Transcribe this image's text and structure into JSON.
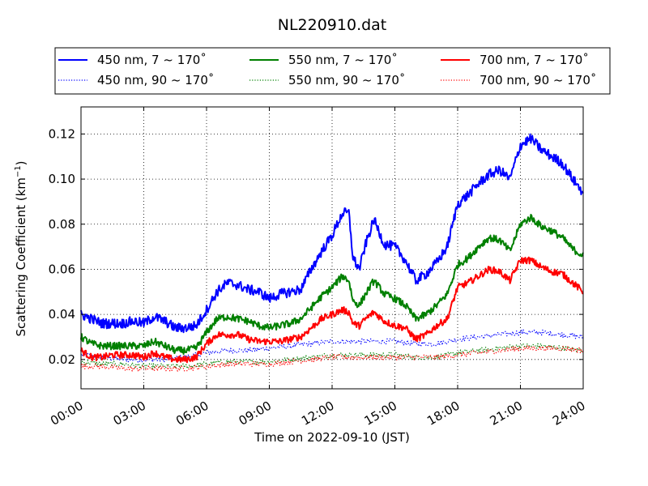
{
  "chart_data": {
    "type": "line",
    "title": "NL220910.dat",
    "xlabel": "Time on 2022-09-10 (JST)",
    "ylabel": "Scattering Coefficient (km",
    "ylabel_sup": "−1",
    "ylabel_close": ")",
    "xlim": [
      0,
      24
    ],
    "ylim": [
      0.007,
      0.132
    ],
    "x_unit": "hours",
    "grid": true,
    "legend_position": "top",
    "x_ticks": [
      0,
      3,
      6,
      9,
      12,
      15,
      18,
      21,
      24
    ],
    "x_tick_labels": [
      "00:00",
      "03:00",
      "06:00",
      "09:00",
      "12:00",
      "15:00",
      "18:00",
      "21:00",
      "24:00"
    ],
    "y_ticks": [
      0.02,
      0.04,
      0.06,
      0.08,
      0.1,
      0.12
    ],
    "y_tick_labels": [
      "0.02",
      "0.04",
      "0.06",
      "0.08",
      "0.10",
      "0.12"
    ],
    "series": [
      {
        "name": "450 nm, 7 ~ 170˚",
        "color": "#0000ff",
        "style": "solid",
        "noise": 0.0022,
        "x": [
          0,
          0.5,
          1,
          1.5,
          2,
          2.5,
          3,
          3.5,
          4,
          4.5,
          5,
          5.5,
          6,
          6.5,
          7,
          7.5,
          8,
          8.5,
          9,
          9.5,
          10,
          10.5,
          11,
          11.5,
          12,
          12.5,
          12.8,
          13,
          13.3,
          13.6,
          14,
          14.5,
          15,
          15.5,
          16,
          16.5,
          17,
          17.5,
          18,
          18.5,
          19,
          19.5,
          20,
          20.5,
          21,
          21.5,
          22,
          22.5,
          23,
          23.5,
          24
        ],
        "y": [
          0.04,
          0.038,
          0.036,
          0.036,
          0.036,
          0.037,
          0.036,
          0.039,
          0.037,
          0.034,
          0.034,
          0.035,
          0.042,
          0.05,
          0.054,
          0.053,
          0.051,
          0.05,
          0.047,
          0.049,
          0.05,
          0.051,
          0.06,
          0.068,
          0.075,
          0.085,
          0.085,
          0.065,
          0.06,
          0.071,
          0.082,
          0.071,
          0.07,
          0.064,
          0.055,
          0.058,
          0.063,
          0.07,
          0.089,
          0.093,
          0.098,
          0.102,
          0.104,
          0.1,
          0.115,
          0.118,
          0.113,
          0.11,
          0.107,
          0.1,
          0.094
        ]
      },
      {
        "name": "450 nm, 90 ~ 170˚",
        "color": "#0000ff",
        "style": "dotted",
        "noise": 0.0012,
        "x": [
          0,
          1,
          2,
          3,
          4,
          5,
          6,
          7,
          8,
          9,
          10,
          11,
          12,
          13,
          14,
          15,
          16,
          17,
          18,
          19,
          20,
          21,
          22,
          23,
          24
        ],
        "y": [
          0.022,
          0.021,
          0.02,
          0.02,
          0.02,
          0.021,
          0.023,
          0.024,
          0.024,
          0.025,
          0.026,
          0.027,
          0.028,
          0.028,
          0.028,
          0.028,
          0.027,
          0.027,
          0.029,
          0.03,
          0.031,
          0.032,
          0.032,
          0.031,
          0.03
        ]
      },
      {
        "name": "550 nm, 7 ~ 170˚",
        "color": "#008000",
        "style": "solid",
        "noise": 0.0016,
        "x": [
          0,
          0.5,
          1,
          1.5,
          2,
          2.5,
          3,
          3.5,
          4,
          4.5,
          5,
          5.5,
          6,
          6.5,
          7,
          7.5,
          8,
          8.5,
          9,
          9.5,
          10,
          10.5,
          11,
          11.5,
          12,
          12.5,
          12.8,
          13,
          13.3,
          13.6,
          14,
          14.5,
          15,
          15.5,
          16,
          16.5,
          17,
          17.5,
          18,
          18.5,
          19,
          19.5,
          20,
          20.5,
          21,
          21.5,
          22,
          22.5,
          23,
          23.5,
          24
        ],
        "y": [
          0.03,
          0.027,
          0.026,
          0.026,
          0.026,
          0.026,
          0.026,
          0.028,
          0.026,
          0.024,
          0.024,
          0.025,
          0.032,
          0.038,
          0.039,
          0.038,
          0.037,
          0.035,
          0.034,
          0.035,
          0.036,
          0.038,
          0.043,
          0.048,
          0.052,
          0.057,
          0.055,
          0.046,
          0.044,
          0.049,
          0.055,
          0.049,
          0.047,
          0.044,
          0.038,
          0.04,
          0.044,
          0.049,
          0.062,
          0.065,
          0.07,
          0.074,
          0.073,
          0.068,
          0.08,
          0.083,
          0.079,
          0.077,
          0.074,
          0.069,
          0.066
        ]
      },
      {
        "name": "550 nm, 90 ~ 170˚",
        "color": "#008000",
        "style": "dotted",
        "noise": 0.0012,
        "x": [
          0,
          1,
          2,
          3,
          4,
          5,
          6,
          7,
          8,
          9,
          10,
          11,
          12,
          13,
          14,
          15,
          16,
          17,
          18,
          19,
          20,
          21,
          22,
          23,
          24
        ],
        "y": [
          0.019,
          0.018,
          0.018,
          0.017,
          0.017,
          0.017,
          0.018,
          0.019,
          0.019,
          0.019,
          0.02,
          0.021,
          0.022,
          0.022,
          0.022,
          0.022,
          0.021,
          0.021,
          0.023,
          0.024,
          0.025,
          0.026,
          0.026,
          0.025,
          0.024
        ]
      },
      {
        "name": "700 nm, 7 ~ 170˚",
        "color": "#ff0000",
        "style": "solid",
        "noise": 0.0015,
        "x": [
          0,
          0.5,
          1,
          1.5,
          2,
          2.5,
          3,
          3.5,
          4,
          4.5,
          5,
          5.5,
          6,
          6.5,
          7,
          7.5,
          8,
          8.5,
          9,
          9.5,
          10,
          10.5,
          11,
          11.5,
          12,
          12.5,
          12.8,
          13,
          13.3,
          13.6,
          14,
          14.5,
          15,
          15.5,
          16,
          16.5,
          17,
          17.5,
          18,
          18.5,
          19,
          19.5,
          20,
          20.5,
          21,
          21.5,
          22,
          22.5,
          23,
          23.5,
          24
        ],
        "y": [
          0.024,
          0.021,
          0.021,
          0.022,
          0.022,
          0.022,
          0.021,
          0.023,
          0.021,
          0.02,
          0.02,
          0.021,
          0.027,
          0.031,
          0.031,
          0.031,
          0.029,
          0.028,
          0.028,
          0.028,
          0.029,
          0.03,
          0.034,
          0.038,
          0.04,
          0.042,
          0.041,
          0.036,
          0.035,
          0.038,
          0.041,
          0.037,
          0.035,
          0.034,
          0.029,
          0.031,
          0.035,
          0.038,
          0.052,
          0.054,
          0.057,
          0.06,
          0.059,
          0.055,
          0.064,
          0.064,
          0.061,
          0.059,
          0.058,
          0.054,
          0.05
        ]
      },
      {
        "name": "700 nm, 90 ~ 170˚",
        "color": "#ff0000",
        "style": "dotted",
        "noise": 0.0012,
        "x": [
          0,
          1,
          2,
          3,
          4,
          5,
          6,
          7,
          8,
          9,
          10,
          11,
          12,
          13,
          14,
          15,
          16,
          17,
          18,
          19,
          20,
          21,
          22,
          23,
          24
        ],
        "y": [
          0.017,
          0.017,
          0.016,
          0.016,
          0.016,
          0.016,
          0.017,
          0.018,
          0.018,
          0.018,
          0.019,
          0.02,
          0.021,
          0.021,
          0.021,
          0.021,
          0.021,
          0.021,
          0.022,
          0.023,
          0.024,
          0.025,
          0.025,
          0.025,
          0.024
        ]
      }
    ]
  }
}
